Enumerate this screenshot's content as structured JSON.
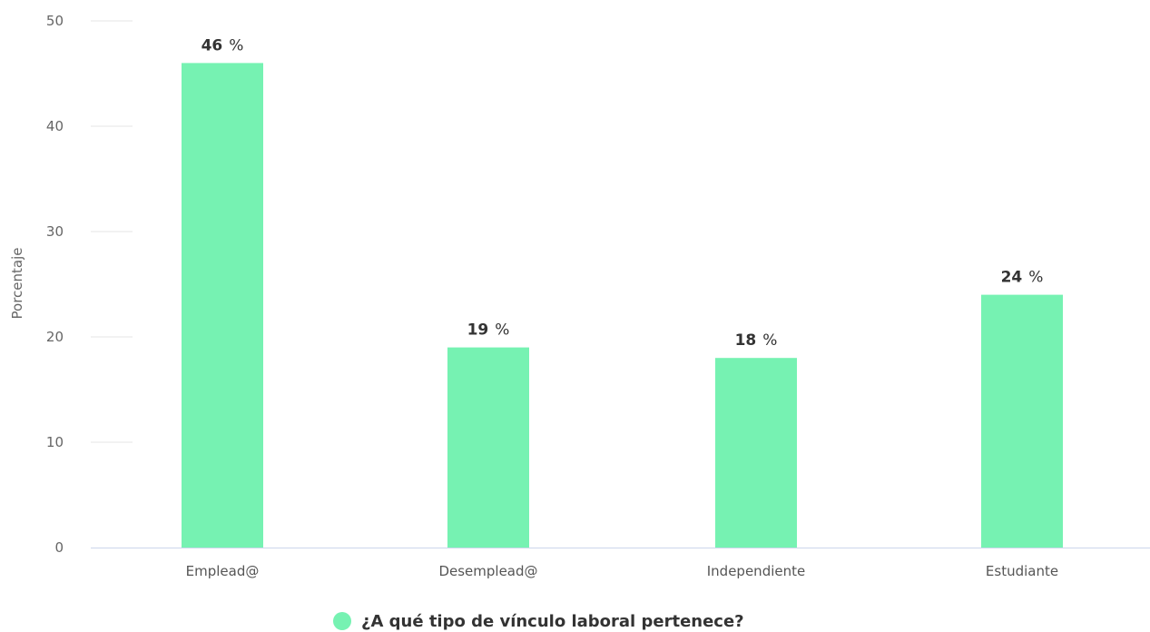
{
  "chart_data": {
    "type": "bar",
    "title": "",
    "xlabel": "",
    "ylabel": "Porcentaje",
    "ylim": [
      0,
      50
    ],
    "yticks": [
      0,
      10,
      20,
      30,
      40,
      50
    ],
    "categories": [
      "Emplead@",
      "Desemplead@",
      "Independiente",
      "Estudiante"
    ],
    "series": [
      {
        "name": "¿A qué tipo de vínculo laboral pertenece?",
        "values": [
          46,
          19,
          18,
          24
        ],
        "color": "#76f2b2"
      }
    ],
    "data_label_unit": "%",
    "grid": true,
    "legend": "bottom-center"
  }
}
